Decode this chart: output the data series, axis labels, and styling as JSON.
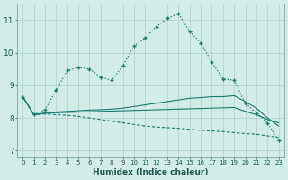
{
  "xlabel": "Humidex (Indice chaleur)",
  "bg_color": "#d4ece8",
  "grid_color": "#aececa",
  "line_color": "#1a7a6e",
  "xlim_min": -0.5,
  "xlim_max": 23.5,
  "ylim_min": 6.8,
  "ylim_max": 11.5,
  "xticks": [
    0,
    1,
    2,
    3,
    4,
    5,
    6,
    7,
    8,
    9,
    10,
    11,
    12,
    13,
    14,
    15,
    16,
    17,
    18,
    19,
    20,
    21,
    22,
    23
  ],
  "yticks": [
    7,
    8,
    9,
    10,
    11
  ],
  "line1_x": [
    0,
    1,
    2,
    3,
    4,
    5,
    6,
    7,
    8,
    9,
    10,
    11,
    12,
    13,
    14,
    15,
    16,
    17,
    18,
    19,
    20,
    21,
    22,
    23
  ],
  "line1_y": [
    8.65,
    8.1,
    8.25,
    8.85,
    9.45,
    9.55,
    9.5,
    9.25,
    9.15,
    9.6,
    10.2,
    10.45,
    10.8,
    11.05,
    11.2,
    10.65,
    10.3,
    9.7,
    9.2,
    9.15,
    8.45,
    8.15,
    7.85,
    7.3
  ],
  "line2_x": [
    0,
    1,
    2,
    3,
    4,
    5,
    6,
    7,
    8,
    9,
    10,
    11,
    12,
    13,
    14,
    15,
    16,
    17,
    18,
    19,
    20,
    21,
    22,
    23
  ],
  "line2_y": [
    8.65,
    8.1,
    8.15,
    8.18,
    8.2,
    8.22,
    8.24,
    8.25,
    8.27,
    8.3,
    8.35,
    8.4,
    8.45,
    8.5,
    8.55,
    8.6,
    8.62,
    8.65,
    8.65,
    8.68,
    8.5,
    8.3,
    8.0,
    7.75
  ],
  "line3_x": [
    0,
    1,
    2,
    3,
    4,
    5,
    6,
    7,
    8,
    9,
    10,
    11,
    12,
    13,
    14,
    15,
    16,
    17,
    18,
    19,
    20,
    21,
    22,
    23
  ],
  "line3_y": [
    8.65,
    8.1,
    8.14,
    8.16,
    8.17,
    8.18,
    8.19,
    8.2,
    8.21,
    8.22,
    8.23,
    8.24,
    8.25,
    8.26,
    8.27,
    8.28,
    8.29,
    8.3,
    8.31,
    8.32,
    8.2,
    8.1,
    7.95,
    7.85
  ],
  "line4_x": [
    0,
    1,
    2,
    3,
    4,
    5,
    6,
    7,
    8,
    9,
    10,
    11,
    12,
    13,
    14,
    15,
    16,
    17,
    18,
    19,
    20,
    21,
    22,
    23
  ],
  "line4_y": [
    8.65,
    8.1,
    8.12,
    8.1,
    8.08,
    8.05,
    8.0,
    7.95,
    7.9,
    7.85,
    7.8,
    7.75,
    7.72,
    7.7,
    7.68,
    7.65,
    7.62,
    7.6,
    7.58,
    7.55,
    7.52,
    7.5,
    7.45,
    7.4
  ]
}
